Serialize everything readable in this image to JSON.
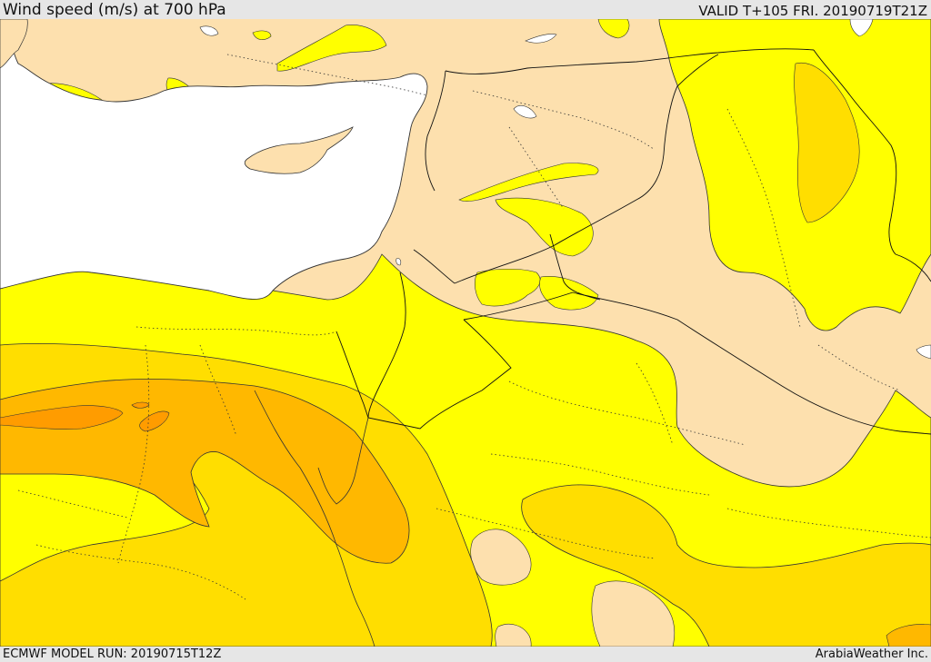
{
  "header": {
    "title": "Wind speed (m/s) at 700 hPa",
    "valid": "VALID T+105 FRI. 20190719T21Z"
  },
  "footer": {
    "model_run": "ECMWF MODEL RUN: 20190715T12Z",
    "credit": "ArabiaWeather Inc."
  },
  "colors": {
    "sea": "#ffffff",
    "land_calm": "#fde0ae",
    "wind_band_1": "#ffff00",
    "wind_band_2": "#ffde00",
    "wind_band_3": "#ffb800",
    "wind_band_4": "#ff9c00",
    "contour": "#333333",
    "border": "#111111"
  }
}
